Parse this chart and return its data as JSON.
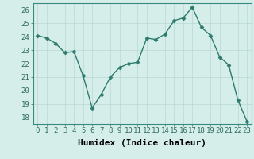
{
  "x": [
    0,
    1,
    2,
    3,
    4,
    5,
    6,
    7,
    8,
    9,
    10,
    11,
    12,
    13,
    14,
    15,
    16,
    17,
    18,
    19,
    20,
    21,
    22,
    23
  ],
  "y": [
    24.1,
    23.9,
    23.5,
    22.8,
    22.9,
    21.1,
    18.7,
    19.7,
    21.0,
    21.7,
    22.0,
    22.1,
    23.9,
    23.8,
    24.2,
    25.2,
    25.4,
    26.2,
    24.7,
    24.1,
    22.5,
    21.9,
    19.3,
    17.7
  ],
  "line_color": "#2d7a6e",
  "marker": "D",
  "marker_size": 2.5,
  "linewidth": 1.0,
  "xlabel": "Humidex (Indice chaleur)",
  "xlim": [
    -0.5,
    23.5
  ],
  "ylim": [
    17.5,
    26.5
  ],
  "yticks": [
    18,
    19,
    20,
    21,
    22,
    23,
    24,
    25,
    26
  ],
  "xticks": [
    0,
    1,
    2,
    3,
    4,
    5,
    6,
    7,
    8,
    9,
    10,
    11,
    12,
    13,
    14,
    15,
    16,
    17,
    18,
    19,
    20,
    21,
    22,
    23
  ],
  "bg_color": "#d6eeea",
  "grid_color": "#b8d8d4",
  "tick_label_fontsize": 6.5,
  "xlabel_fontsize": 8
}
